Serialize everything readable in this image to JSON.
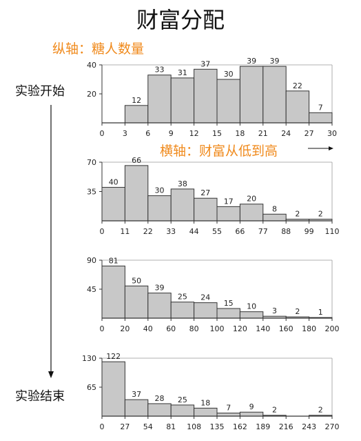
{
  "title": "财富分配",
  "y_axis_note": "纵轴：糖人数量",
  "x_axis_note": "横轴：财富从低到高",
  "start_label": "实验开始",
  "end_label": "实验结束",
  "colors": {
    "bar_fill": "#c8c8c8",
    "bar_stroke": "#333333",
    "accent": "#f08a1c"
  },
  "chart_data": [
    {
      "type": "bar",
      "x_ticks": [
        0,
        3,
        6,
        9,
        12,
        15,
        18,
        21,
        24,
        27,
        30
      ],
      "values": [
        0,
        12,
        33,
        31,
        37,
        30,
        39,
        39,
        22,
        7
      ],
      "data_labels": [
        "",
        "12",
        "33",
        "31",
        "37",
        "30",
        "39",
        "39",
        "22",
        "7"
      ],
      "y_ticks": [
        20,
        40
      ],
      "ylim": [
        0,
        40
      ]
    },
    {
      "type": "bar",
      "x_ticks": [
        0,
        11,
        22,
        33,
        44,
        55,
        66,
        77,
        88,
        99,
        110
      ],
      "values": [
        40,
        66,
        30,
        38,
        27,
        17,
        20,
        8,
        2,
        2
      ],
      "data_labels": [
        "40",
        "66",
        "30",
        "38",
        "27",
        "17",
        "20",
        "8",
        "2",
        "2"
      ],
      "y_ticks": [
        35,
        70
      ],
      "ylim": [
        0,
        70
      ]
    },
    {
      "type": "bar",
      "x_ticks": [
        0,
        20,
        40,
        60,
        80,
        100,
        120,
        140,
        160,
        180,
        200
      ],
      "values": [
        81,
        50,
        39,
        25,
        24,
        15,
        10,
        3,
        2,
        1
      ],
      "data_labels": [
        "81",
        "50",
        "39",
        "25",
        "24",
        "15",
        "10",
        "3",
        "2",
        "1"
      ],
      "y_ticks": [
        45,
        90
      ],
      "ylim": [
        0,
        90
      ]
    },
    {
      "type": "bar",
      "x_ticks": [
        0,
        27,
        54,
        81,
        108,
        135,
        162,
        189,
        216,
        243,
        270
      ],
      "values": [
        122,
        37,
        28,
        25,
        18,
        7,
        9,
        2,
        0,
        2
      ],
      "data_labels": [
        "122",
        "37",
        "28",
        "25",
        "18",
        "7",
        "9",
        "2",
        "",
        "2"
      ],
      "y_ticks": [
        65,
        130
      ],
      "ylim": [
        0,
        130
      ]
    }
  ]
}
